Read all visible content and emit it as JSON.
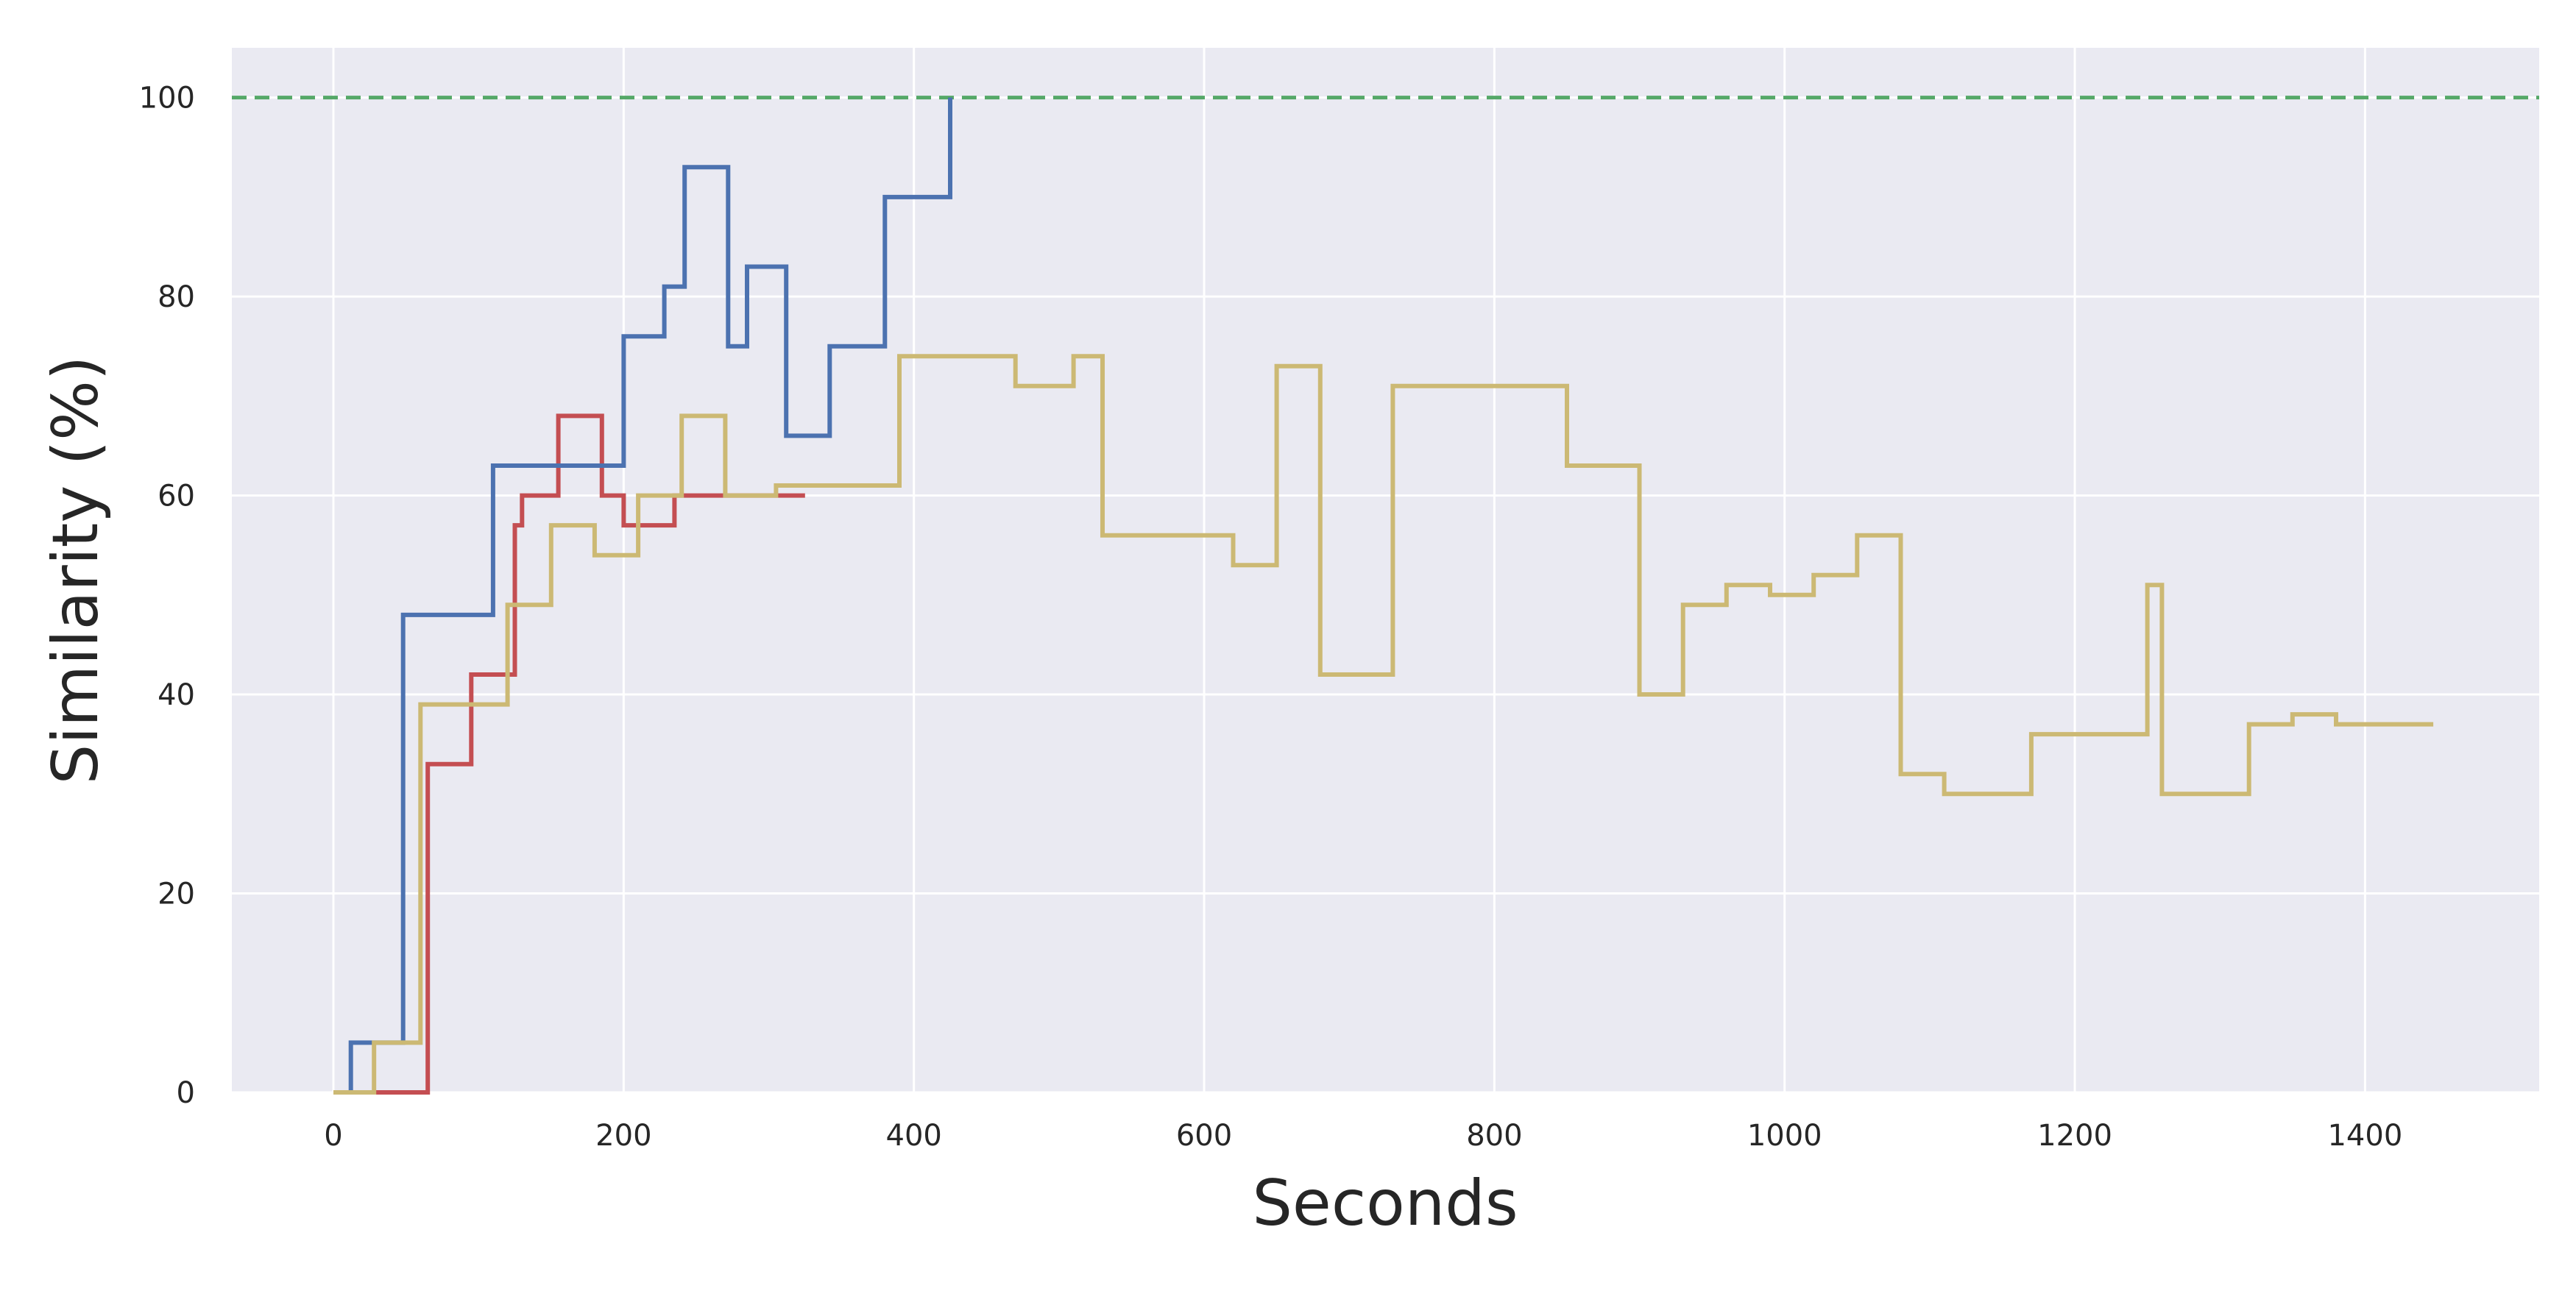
{
  "chart_data": {
    "type": "line",
    "title": "",
    "xlabel": "Seconds",
    "ylabel": "Similarity (%)",
    "xlim": [
      -70,
      1520
    ],
    "ylim": [
      0,
      105
    ],
    "xticks": [
      0,
      200,
      400,
      600,
      800,
      1000,
      1200,
      1400
    ],
    "yticks": [
      0,
      20,
      40,
      60,
      80,
      100
    ],
    "grid": true,
    "legend": "none",
    "background_color": "#eaeaf2",
    "reference_line": {
      "y": 100,
      "style": "dashed",
      "color": "#55a868"
    },
    "series": [
      {
        "color": "#c44e52",
        "step": "post",
        "x": [
          0,
          50,
          65,
          95,
          125,
          130,
          155,
          185,
          200,
          235,
          325
        ],
        "y": [
          0,
          0,
          33,
          42,
          57,
          60,
          68,
          60,
          57,
          60,
          60
        ]
      },
      {
        "color": "#4c72b0",
        "step": "post",
        "x": [
          0,
          12,
          48,
          110,
          200,
          228,
          242,
          272,
          285,
          312,
          342,
          380,
          425
        ],
        "y": [
          0,
          5,
          48,
          63,
          76,
          81,
          93,
          75,
          83,
          66,
          75,
          90,
          100
        ]
      },
      {
        "color": "#ccb974",
        "step": "post",
        "x": [
          0,
          28,
          60,
          120,
          150,
          180,
          210,
          240,
          270,
          305,
          390,
          470,
          510,
          530,
          620,
          650,
          680,
          730,
          850,
          900,
          930,
          960,
          990,
          1020,
          1050,
          1080,
          1110,
          1170,
          1250,
          1260,
          1320,
          1350,
          1380,
          1447
        ],
        "y": [
          0,
          5,
          39,
          49,
          57,
          54,
          60,
          68,
          60,
          61,
          74,
          71,
          74,
          56,
          53,
          73,
          42,
          71,
          63,
          40,
          49,
          51,
          50,
          52,
          56,
          32,
          30,
          36,
          51,
          30,
          37,
          38,
          37,
          37
        ]
      }
    ]
  }
}
